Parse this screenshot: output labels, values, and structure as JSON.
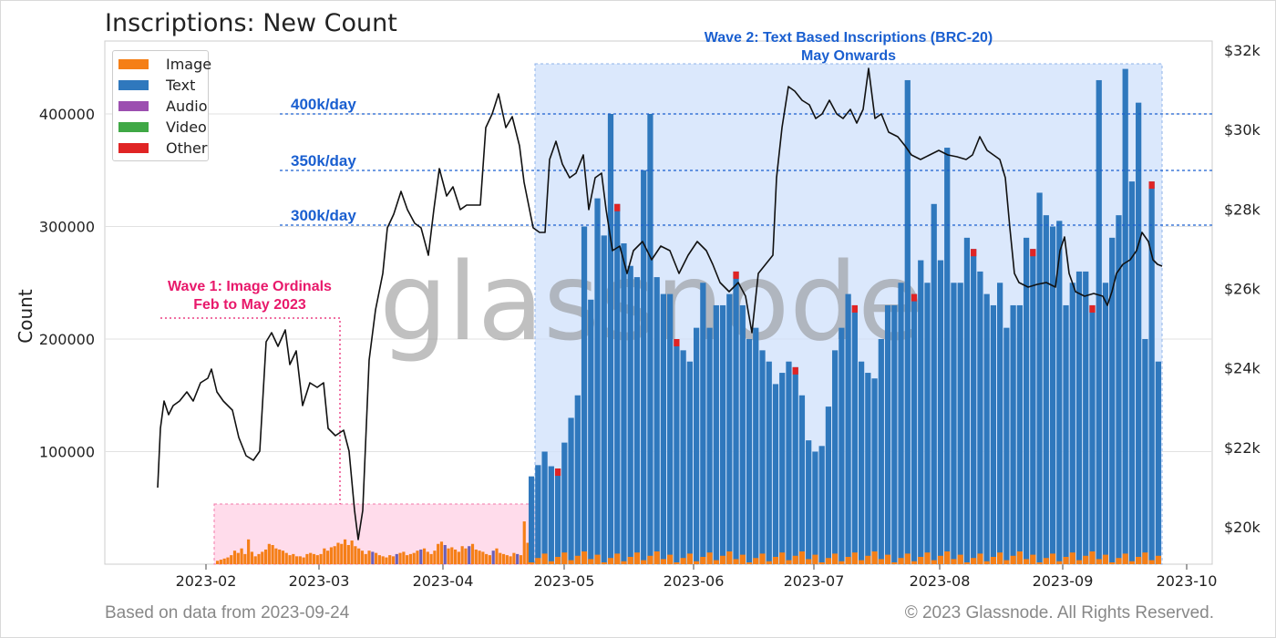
{
  "header": {
    "title": "Inscriptions: New Count"
  },
  "footer": {
    "left": "Based on data from 2023-09-24",
    "right": "© 2023 Glassnode. All Rights Reserved."
  },
  "watermark": "glassnode",
  "chart_data": {
    "type": "bar",
    "title": "Inscriptions: New Count",
    "ylabel": "Count",
    "ylim": [
      0,
      400000
    ],
    "y_ticks": [
      "100000",
      "200000",
      "300000",
      "400000"
    ],
    "y2_ticks": [
      "$20k",
      "$22k",
      "$24k",
      "$26k",
      "$28k",
      "$30k",
      "$32k"
    ],
    "x_ticks": [
      "2023-02",
      "2023-03",
      "2023-04",
      "2023-05",
      "2023-06",
      "2023-07",
      "2023-08",
      "2023-09",
      "2023-10"
    ],
    "grid": true,
    "legend_position": "top-left",
    "legend": [
      {
        "name": "Image",
        "color": "#f57f17"
      },
      {
        "name": "Text",
        "color": "#2f78bd"
      },
      {
        "name": "Audio",
        "color": "#9c4fb0"
      },
      {
        "name": "Video",
        "color": "#3fa845"
      },
      {
        "name": "Other",
        "color": "#e02424"
      }
    ],
    "reference_lines": [
      {
        "label": "400k/day",
        "value": 400000
      },
      {
        "label": "350k/day",
        "value": 350000
      },
      {
        "label": "300k/day",
        "value": 300000
      }
    ],
    "annotations": [
      {
        "lines": [
          "Wave 1: Image Ordinals",
          "Feb to May 2023"
        ],
        "color": "#e8196b"
      },
      {
        "lines": [
          "Wave 2: Text Based Inscriptions (BRC-20)",
          "May Onwards"
        ],
        "color": "#1a5fd0"
      }
    ],
    "series": [
      {
        "name": "Image",
        "values": [
          3000,
          4000,
          5000,
          6000,
          8000,
          12000,
          10000,
          14000,
          9000,
          22000,
          11000,
          7000,
          9000,
          11000,
          13000,
          18000,
          17000,
          14000,
          13000,
          12000,
          10000,
          8000,
          9000,
          7000,
          7000,
          6000,
          9000,
          10000,
          9000,
          8000,
          9000,
          14000,
          12000,
          15000,
          16000,
          19000,
          18000,
          22000,
          17000,
          21000,
          16000,
          14000,
          12000,
          9000,
          12000,
          11000,
          10000,
          8000,
          7000,
          6000,
          8000,
          7000,
          9000,
          10000,
          11000,
          8000,
          9000,
          10000,
          12000,
          13000,
          14000,
          11000,
          9000,
          12000,
          18000,
          20000,
          17000,
          14000,
          15000,
          13000,
          11000,
          16000,
          14000,
          16000,
          18000,
          13000,
          12000,
          11000,
          9000,
          8000,
          12000,
          14000,
          10000,
          9000,
          8000,
          7000,
          10000,
          9000,
          8000,
          38000,
          19000,
          12000
        ],
        "note": "Feb 2023 through Apr 2023 (Wave 1)"
      },
      {
        "name": "Text",
        "values": [
          78000,
          88000,
          100000,
          87000,
          85000,
          108000,
          130000,
          150000,
          300000,
          235000,
          325000,
          292000,
          400000,
          320000,
          285000,
          265000,
          255000,
          350000,
          400000,
          255000,
          240000,
          240000,
          200000,
          190000,
          180000,
          210000,
          250000,
          210000,
          230000,
          230000,
          240000,
          260000,
          230000,
          200000,
          210000,
          190000,
          180000,
          160000,
          170000,
          180000,
          175000,
          150000,
          110000,
          100000,
          105000,
          140000,
          190000,
          210000,
          240000,
          230000,
          180000,
          170000,
          165000,
          200000,
          230000,
          230000,
          250000,
          430000,
          240000,
          270000,
          250000,
          320000,
          270000,
          370000,
          250000,
          250000,
          290000,
          280000,
          260000,
          240000,
          230000,
          250000,
          210000,
          230000,
          230000,
          290000,
          280000,
          330000,
          310000,
          300000,
          305000,
          230000,
          250000,
          260000,
          260000,
          230000,
          430000,
          250000,
          290000,
          310000,
          440000,
          340000,
          410000,
          200000,
          340000,
          180000
        ],
        "note": "late Apr 2023 through Sep 2023 (Wave 2)"
      }
    ],
    "price_range_usd": [
      19000,
      32000
    ],
    "price_series_note": "Black line: BTC price on right axis, ~$21.5k in late Jan rising to ~$31k in mid-Jul, ~$26.5k on 2023-09-24"
  }
}
